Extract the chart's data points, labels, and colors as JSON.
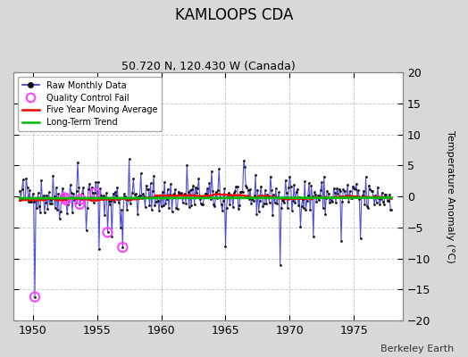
{
  "title": "KAMLOOPS CDA",
  "subtitle": "50.720 N, 120.430 W (Canada)",
  "ylabel": "Temperature Anomaly (°C)",
  "watermark": "Berkeley Earth",
  "xlim": [
    1948.5,
    1978.8
  ],
  "ylim": [
    -20,
    20
  ],
  "yticks": [
    -20,
    -15,
    -10,
    -5,
    0,
    5,
    10,
    15,
    20
  ],
  "xticks": [
    1950,
    1955,
    1960,
    1965,
    1970,
    1975
  ],
  "fig_bg": "#d8d8d8",
  "plot_bg": "#ffffff",
  "grid_color": "#ccccdd",
  "line_color": "#3333cc",
  "marker_color": "#111111",
  "ma_color": "#ee0000",
  "trend_color": "#00bb00",
  "qc_color": "#ff44ff",
  "seed": 42,
  "n_months": 348,
  "start_year": 1949.0,
  "trend_slope": 0.003,
  "trend_intercept": -0.3,
  "title_fontsize": 12,
  "subtitle_fontsize": 9,
  "tick_labelsize": 9,
  "ylabel_fontsize": 8,
  "legend_fontsize": 7,
  "watermark_fontsize": 8
}
